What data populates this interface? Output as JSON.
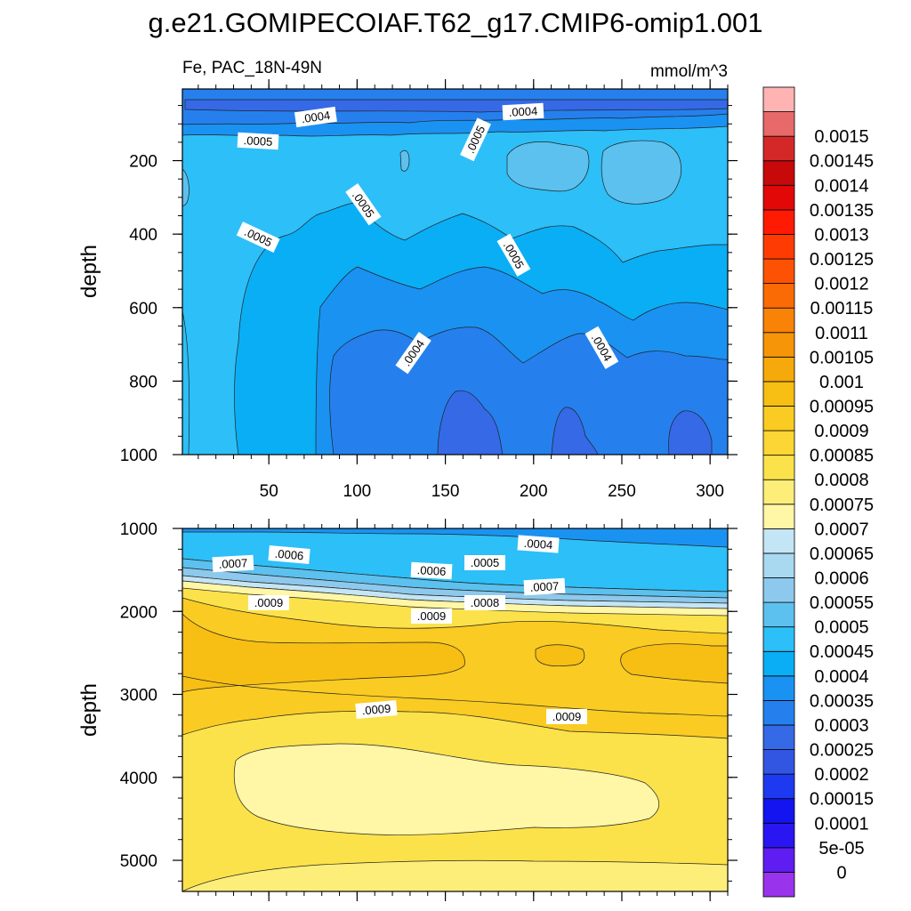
{
  "title": "g.e21.GOMIPECOIAF.T62_g17.CMIP6-omip1.001",
  "subtitle_left": "Fe, PAC_18N-49N",
  "subtitle_right": "mmol/m^3",
  "colorbar": {
    "colors": [
      "#9a33ec",
      "#5f1df2",
      "#2a16f2",
      "#1414f0",
      "#1e3af0",
      "#3356e2",
      "#3569e6",
      "#2580ee",
      "#1a92f2",
      "#0aaef5",
      "#2dbff7",
      "#5cc1ee",
      "#8dc9ec",
      "#a9d8f1",
      "#c4e5f5",
      "#fff6a6",
      "#fdee7a",
      "#fce24a",
      "#fbd634",
      "#facb22",
      "#f7be14",
      "#f6a90a",
      "#f69507",
      "#f88306",
      "#fb6b05",
      "#fd5204",
      "#fe3b03",
      "#ff1a04",
      "#e20808",
      "#c80909",
      "#d42828",
      "#e76969",
      "#ffb3b3"
    ],
    "labels": [
      "0",
      "5e-05",
      "0.0001",
      "0.00015",
      "0.0002",
      "0.00025",
      "0.0003",
      "0.00035",
      "0.0004",
      "0.00045",
      "0.0005",
      "0.00055",
      "0.0006",
      "0.00065",
      "0.0007",
      "0.00075",
      "0.0008",
      "0.00085",
      "0.0009",
      "0.00095",
      "0.001",
      "0.00105",
      "0.0011",
      "0.00115",
      "0.0012",
      "0.00125",
      "0.0013",
      "0.00135",
      "0.0014",
      "0.00145",
      "0.0015"
    ]
  },
  "chart_data": [
    {
      "type": "heatmap",
      "panel": "upper",
      "ylabel": "depth",
      "xlim": [
        1,
        310
      ],
      "ylim": [
        1000,
        5
      ],
      "xticks": [
        50,
        100,
        150,
        200,
        250,
        300
      ],
      "yticks": [
        200,
        400,
        600,
        800,
        1000
      ],
      "regions": [
        {
          "name": "surface-band",
          "value": 0.00036
        },
        {
          "name": "upper-main",
          "value": 0.00048
        },
        {
          "name": "upper-patches",
          "value": 0.00052
        },
        {
          "name": "mid-layer",
          "value": 0.00044
        },
        {
          "name": "deep-layer",
          "value": 0.00039
        },
        {
          "name": "deep-patches",
          "value": 0.00034
        }
      ],
      "contour_labels": [
        ".0004",
        ".0004",
        ".0005",
        ".0005",
        ".0005",
        ".0005",
        ".0005",
        ".0004",
        ".0004"
      ]
    },
    {
      "type": "heatmap",
      "panel": "lower",
      "ylabel": "depth",
      "xlim": [
        1,
        310
      ],
      "ylim": [
        5375,
        1000
      ],
      "yticks": [
        1000,
        2000,
        3000,
        4000,
        5000
      ],
      "regions": [
        {
          "name": "top-gradient",
          "value": 0.00045
        },
        {
          "name": "transition",
          "value": 0.00075
        },
        {
          "name": "core-0.0009",
          "value": 0.00088
        },
        {
          "name": "orange-band",
          "value": 0.00096
        },
        {
          "name": "deep-0.0009",
          "value": 0.00086
        },
        {
          "name": "bottom-pool",
          "value": 0.00079
        }
      ],
      "contour_labels": [
        ".0004",
        ".0006",
        ".0007",
        ".0006",
        ".0005",
        ".0007",
        ".0009",
        ".0009",
        ".0008",
        ".0009",
        ".0009"
      ]
    }
  ]
}
